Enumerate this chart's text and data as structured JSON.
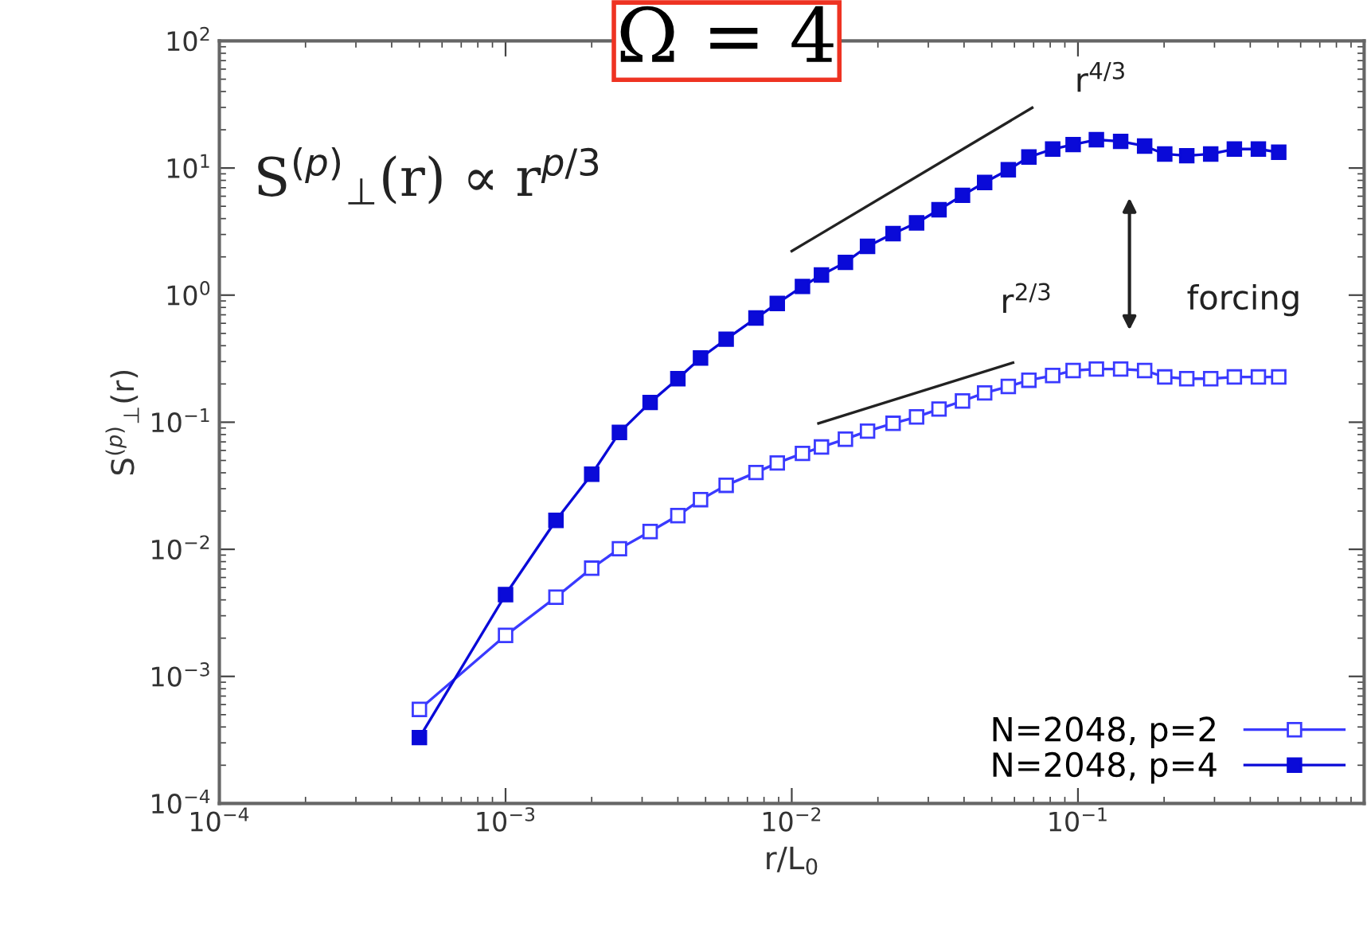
{
  "chart_data": {
    "type": "line",
    "title": "Ω = 4",
    "xlabel": "r/L$_{0}$",
    "ylabel": "S$^{(p)}$$_{⊥}$(r)",
    "log": "xy",
    "grid": false,
    "legend": "bottom right",
    "line_style": "solid",
    "xlim": [
      0.0001,
      1
    ],
    "ylim": [
      0.0001,
      100
    ],
    "xticks": [
      {
        "value": 0.0001,
        "label": "10$^{−4}$"
      },
      {
        "value": 0.001,
        "label": "10$^{−3}$"
      },
      {
        "value": 0.01,
        "label": "10$^{−2}$"
      },
      {
        "value": 0.1,
        "label": "10$^{−1}$"
      }
    ],
    "yticks": [
      {
        "value": 0.0001,
        "label": "10$^{−4}$"
      },
      {
        "value": 0.001,
        "label": "10$^{−3}$"
      },
      {
        "value": 0.01,
        "label": "10$^{−2}$"
      },
      {
        "value": 0.1,
        "label": "10$^{−1}$"
      },
      {
        "value": 1,
        "label": "10$^{0}$"
      },
      {
        "value": 10,
        "label": "10$^{1}$"
      },
      {
        "value": 100,
        "label": "10$^{2}$"
      }
    ],
    "x": [
      0.0005,
      0.001,
      0.0015,
      0.002,
      0.0025,
      0.0032,
      0.004,
      0.0048,
      0.0059,
      0.0075,
      0.0089,
      0.0109,
      0.0127,
      0.0154,
      0.0184,
      0.0226,
      0.0273,
      0.0327,
      0.0395,
      0.0472,
      0.0571,
      0.0674,
      0.0816,
      0.0962,
      0.116,
      0.141,
      0.171,
      0.201,
      0.24,
      0.291,
      0.352,
      0.427,
      0.503
    ],
    "series": [
      {
        "name": "N=2048, p=2",
        "color": "#3a3aff",
        "marker": "square",
        "values": [
          0.00055,
          0.0021,
          0.0042,
          0.0071,
          0.0101,
          0.0138,
          0.0184,
          0.0246,
          0.0319,
          0.0402,
          0.0478,
          0.0568,
          0.0638,
          0.0736,
          0.0851,
          0.098,
          0.11,
          0.127,
          0.147,
          0.17,
          0.191,
          0.214,
          0.233,
          0.255,
          0.262,
          0.262,
          0.255,
          0.227,
          0.22,
          0.22,
          0.227,
          0.227,
          0.227
        ]
      },
      {
        "name": "N=2048, p=4",
        "color": "#0a0ad8",
        "marker": "square",
        "values": [
          0.00033,
          0.0044,
          0.0169,
          0.039,
          0.083,
          0.143,
          0.22,
          0.32,
          0.45,
          0.66,
          0.86,
          1.17,
          1.44,
          1.81,
          2.42,
          3.05,
          3.7,
          4.7,
          6.1,
          7.7,
          9.7,
          12.2,
          14.1,
          15.3,
          16.7,
          16.2,
          14.9,
          12.9,
          12.5,
          12.9,
          14.1,
          14.1,
          13.3
        ]
      },
      {
        "type": "line",
        "color": "#222222",
        "marker": "none",
        "x": [
          0.01,
          0.0692
        ],
        "values": [
          2.22,
          29.8
        ]
      },
      {
        "type": "line",
        "color": "#222222",
        "marker": "none",
        "x": [
          0.0124,
          0.0593
        ],
        "values": [
          0.098,
          0.294
        ]
      }
    ],
    "annotations": [
      {
        "text": "S$^{(p)}$$_{⊥}$(r) ∝ r$^{p/3}$"
      },
      "r$^{4/3}$",
      "r$^{2/3}$",
      "forcing"
    ]
  }
}
